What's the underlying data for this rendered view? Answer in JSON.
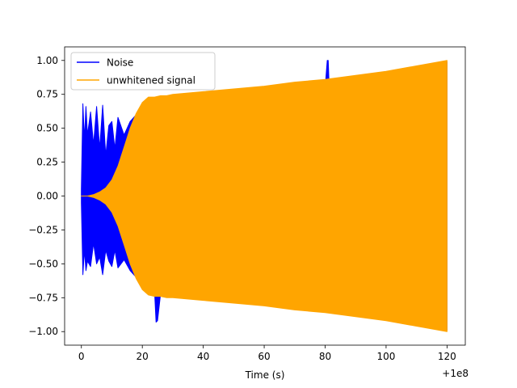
{
  "chart_data": {
    "type": "line",
    "title": "",
    "xlabel": "Time (s)",
    "ylabel": "",
    "x_offset_label": "+1e8",
    "xlim": [
      -5.5,
      126
    ],
    "ylim": [
      -1.1,
      1.1
    ],
    "x_ticks": [
      0,
      20,
      40,
      60,
      80,
      100,
      120
    ],
    "x_tick_labels": [
      "0",
      "20",
      "40",
      "60",
      "80",
      "100",
      "120"
    ],
    "y_ticks": [
      -1.0,
      -0.75,
      -0.5,
      -0.25,
      0.0,
      0.25,
      0.5,
      0.75,
      1.0
    ],
    "y_tick_labels": [
      "−1.00",
      "−0.75",
      "−0.50",
      "−0.25",
      "0.00",
      "0.25",
      "0.50",
      "0.75",
      "1.00"
    ],
    "grid": false,
    "legend_position": "upper-left",
    "series": [
      {
        "name": "Noise",
        "color": "#0000ff",
        "envelope": {
          "x": [
            0,
            0.5,
            1,
            1.5,
            2,
            3,
            4,
            5,
            6,
            7,
            8,
            9,
            10,
            11,
            12,
            14,
            16,
            18,
            20,
            24,
            24.5,
            25,
            26,
            30,
            40,
            60,
            80,
            80.7,
            81,
            81.3,
            82,
            90,
            100,
            110,
            120
          ],
          "upper": [
            0.05,
            0.68,
            0.42,
            0.66,
            0.45,
            0.62,
            0.38,
            0.66,
            0.35,
            0.67,
            0.3,
            0.52,
            0.55,
            0.35,
            0.58,
            0.45,
            0.55,
            0.6,
            0.65,
            0.7,
            0.72,
            0.71,
            0.7,
            0.72,
            0.74,
            0.77,
            0.8,
            1.0,
            1.0,
            0.82,
            0.82,
            0.84,
            0.88,
            0.93,
            0.99
          ],
          "lower": [
            -0.05,
            -0.58,
            -0.4,
            -0.55,
            -0.48,
            -0.52,
            -0.35,
            -0.5,
            -0.45,
            -0.58,
            -0.4,
            -0.48,
            -0.52,
            -0.4,
            -0.53,
            -0.47,
            -0.55,
            -0.6,
            -0.65,
            -0.7,
            -0.93,
            -0.92,
            -0.72,
            -0.74,
            -0.76,
            -0.79,
            -0.82,
            -0.82,
            -0.82,
            -0.82,
            -0.82,
            -0.84,
            -0.88,
            -0.93,
            -0.99
          ]
        }
      },
      {
        "name": "unwhitened signal",
        "color": "#ffa500",
        "envelope": {
          "x": [
            0,
            2,
            4,
            6,
            8,
            10,
            12,
            14,
            16,
            18,
            20,
            22,
            24,
            26,
            28,
            30,
            40,
            50,
            60,
            70,
            80,
            90,
            100,
            110,
            120
          ],
          "upper": [
            0.0,
            0.0,
            0.01,
            0.03,
            0.06,
            0.12,
            0.22,
            0.36,
            0.5,
            0.61,
            0.69,
            0.73,
            0.73,
            0.74,
            0.74,
            0.75,
            0.77,
            0.79,
            0.81,
            0.84,
            0.86,
            0.89,
            0.92,
            0.96,
            1.0
          ],
          "lower": [
            0.0,
            0.0,
            -0.01,
            -0.03,
            -0.06,
            -0.12,
            -0.22,
            -0.36,
            -0.5,
            -0.61,
            -0.69,
            -0.73,
            -0.74,
            -0.74,
            -0.75,
            -0.75,
            -0.77,
            -0.79,
            -0.81,
            -0.84,
            -0.86,
            -0.89,
            -0.92,
            -0.96,
            -1.0
          ]
        }
      }
    ]
  }
}
